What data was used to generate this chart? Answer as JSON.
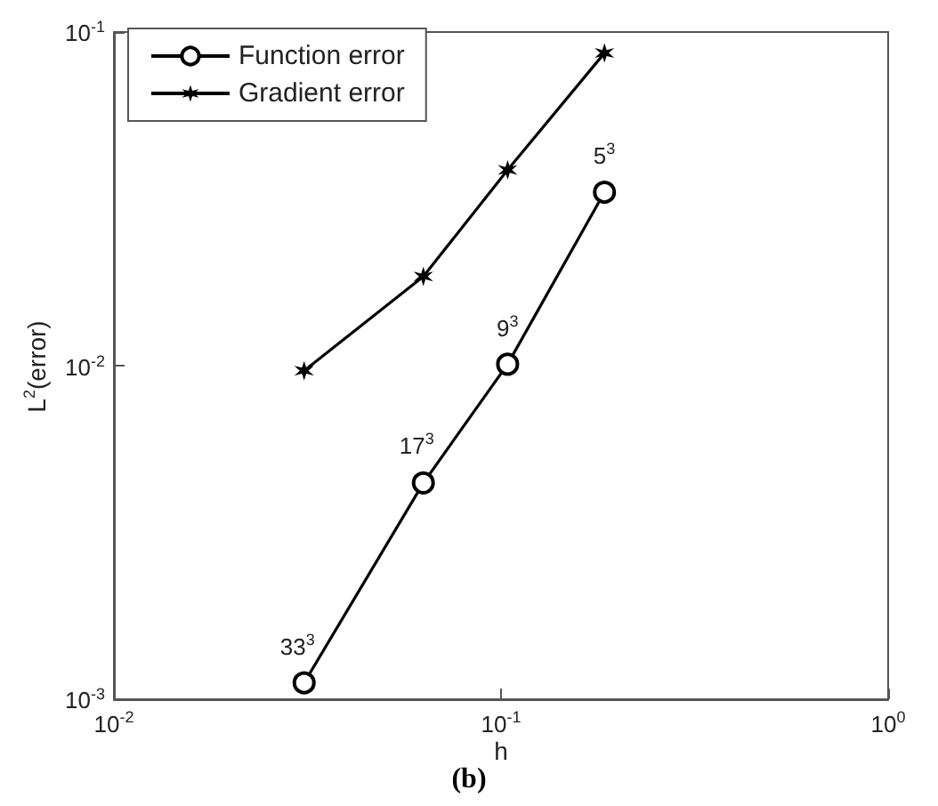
{
  "chart_data": {
    "type": "line",
    "title": "(b)",
    "xlabel": "h",
    "ylabel": "L$^{2}$(error)",
    "log": "xy",
    "grid": false,
    "legend": "top left",
    "line_style": "solid",
    "x": [
      0.031,
      0.063,
      0.104,
      0.185
    ],
    "series": [
      {
        "name": "Function error",
        "color": "#000000",
        "marker": "circle",
        "values": [
          0.00112,
          0.00445,
          0.0101,
          0.0331
        ]
      },
      {
        "name": "Gradient error",
        "color": "#000000",
        "marker": "cross",
        "values": [
          0.00966,
          0.0185,
          0.0386,
          0.0865
        ]
      }
    ],
    "xlim": [
      0.01,
      1
    ],
    "ylim": [
      0.001,
      0.1
    ],
    "xticks": [
      {
        "value": 0.01,
        "label": "10$^{-2}$"
      },
      {
        "value": 0.1,
        "label": "10$^{-1}$"
      },
      {
        "value": 1,
        "label": "10$^{0}$"
      }
    ],
    "yticks": [
      {
        "value": 0.001,
        "label": "10$^{-3}$"
      },
      {
        "value": 0.01,
        "label": "10$^{-2}$"
      },
      {
        "value": 0.1,
        "label": "10$^{-1}$"
      }
    ],
    "annotations": [
      {
        "text": "33$^{3}$",
        "x": 0.031,
        "y": 0.00112
      },
      {
        "text": "17$^{3}$",
        "x": 0.063,
        "y": 0.00445
      },
      {
        "text": "9$^{3}$",
        "x": 0.104,
        "y": 0.0101
      },
      {
        "text": "5$^{3}$",
        "x": 0.185,
        "y": 0.0331
      }
    ]
  }
}
